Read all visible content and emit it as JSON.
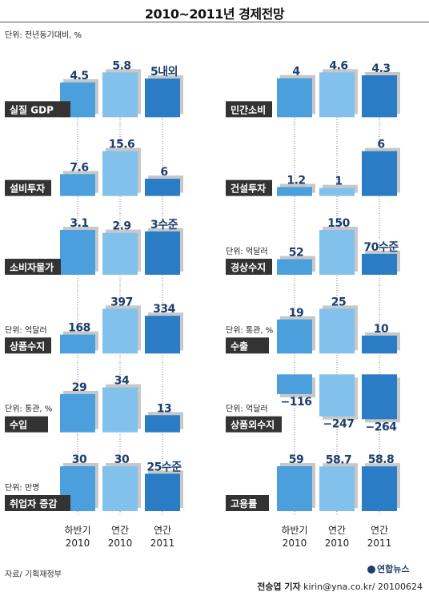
{
  "title": "2010~2011년 경제전망",
  "unit_top": "단위: 전년동기대비, %",
  "source": "자료/ 기획재정부",
  "credit": {
    "reporter": "전승엽 기자",
    "contact": "kirin@yna.co.kr/ 20100624"
  },
  "logo_text": "연합뉴스",
  "colors": {
    "bar1": "#4a9fdc",
    "bar2": "#82c1ec",
    "bar3": "#2a7dc4",
    "label_bg": "#333333",
    "value_text": "#1d3f6e"
  },
  "chart_data": {
    "type": "bar",
    "x_categories": [
      {
        "line1": "하반기",
        "line2": "2010"
      },
      {
        "line1": "연간",
        "line2": "2010"
      },
      {
        "line1": "연간",
        "line2": "2011"
      }
    ],
    "panels": [
      {
        "name": "실질 GDP",
        "unit": "",
        "values": [
          4.5,
          5.8,
          5
        ],
        "value_labels": [
          "4.5",
          "5.8",
          "5내외"
        ]
      },
      {
        "name": "설비투자",
        "unit": "",
        "values": [
          7.6,
          15.6,
          6
        ],
        "value_labels": [
          "7.6",
          "15.6",
          "6"
        ]
      },
      {
        "name": "소비자물가",
        "unit": "",
        "values": [
          3.1,
          2.9,
          3
        ],
        "value_labels": [
          "3.1",
          "2.9",
          "3수준"
        ]
      },
      {
        "name": "상품수지",
        "unit": "단위: 억달러",
        "values": [
          168,
          397,
          334
        ],
        "value_labels": [
          "168",
          "397",
          "334"
        ]
      },
      {
        "name": "수입",
        "unit": "단위: 통관, %",
        "values": [
          29,
          34,
          13
        ],
        "value_labels": [
          "29",
          "34",
          "13"
        ]
      },
      {
        "name": "취업자 증감",
        "unit": "단위: 만명",
        "values": [
          30,
          30,
          25
        ],
        "value_labels": [
          "30",
          "30",
          "25수준"
        ]
      },
      {
        "name": "민간소비",
        "unit": "",
        "values": [
          4,
          4.6,
          4.3
        ],
        "value_labels": [
          "4",
          "4.6",
          "4.3"
        ]
      },
      {
        "name": "건설투자",
        "unit": "",
        "values": [
          1.2,
          1,
          6
        ],
        "value_labels": [
          "1.2",
          "1",
          "6"
        ]
      },
      {
        "name": "경상수지",
        "unit": "단위: 억달러",
        "values": [
          52,
          150,
          70
        ],
        "value_labels": [
          "52",
          "150",
          "70수준"
        ]
      },
      {
        "name": "수출",
        "unit": "단위: 통관, %",
        "values": [
          19,
          25,
          10
        ],
        "value_labels": [
          "19",
          "25",
          "10"
        ]
      },
      {
        "name": "상품외수지",
        "unit": "단위: 억달러",
        "values": [
          -116,
          -247,
          -264
        ],
        "value_labels": [
          "−116",
          "−247",
          "−264"
        ]
      },
      {
        "name": "고용률",
        "unit": "",
        "values": [
          59,
          58.7,
          58.8
        ],
        "value_labels": [
          "59",
          "58.7",
          "58.8"
        ]
      }
    ]
  }
}
